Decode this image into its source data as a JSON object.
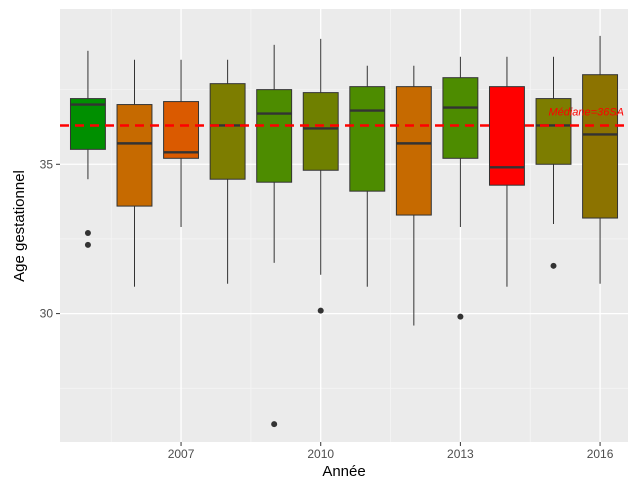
{
  "chart_data": {
    "type": "boxplot",
    "title": "",
    "xlabel": "Année",
    "ylabel": "Age gestationnel",
    "xlim": [
      2004.4,
      2016.6
    ],
    "ylim": [
      25.7,
      40.2
    ],
    "x_ticks": [
      2007,
      2010,
      2013,
      2016
    ],
    "y_ticks": [
      30,
      35
    ],
    "grid": true,
    "legend": "none",
    "reference_line": {
      "value": 36.3,
      "label": "Médiane=36SA",
      "color": "#ff0000",
      "style": "dashed"
    },
    "boxes": [
      {
        "year": 2005,
        "whisker_low": 34.5,
        "q1": 35.5,
        "median": 37.0,
        "q3": 37.2,
        "whisker_high": 38.8,
        "outliers": [
          32.7,
          32.3
        ],
        "color": "#008f00"
      },
      {
        "year": 2006,
        "whisker_low": 30.9,
        "q1": 33.6,
        "median": 35.7,
        "q3": 37.0,
        "whisker_high": 38.5,
        "outliers": [],
        "color": "#c66a00"
      },
      {
        "year": 2007,
        "whisker_low": 32.9,
        "q1": 35.2,
        "median": 35.4,
        "q3": 37.1,
        "whisker_high": 38.5,
        "outliers": [],
        "color": "#da5a00"
      },
      {
        "year": 2008,
        "whisker_low": 31.0,
        "q1": 34.5,
        "median": 36.3,
        "q3": 37.7,
        "whisker_high": 38.5,
        "outliers": [],
        "color": "#7d7d00"
      },
      {
        "year": 2009,
        "whisker_low": 31.7,
        "q1": 34.4,
        "median": 36.7,
        "q3": 37.5,
        "whisker_high": 39.0,
        "outliers": [
          26.3
        ],
        "color": "#4d8c00"
      },
      {
        "year": 2010,
        "whisker_low": 31.3,
        "q1": 34.8,
        "median": 36.2,
        "q3": 37.4,
        "whisker_high": 39.2,
        "outliers": [
          30.1
        ],
        "color": "#6f8000"
      },
      {
        "year": 2011,
        "whisker_low": 30.9,
        "q1": 34.1,
        "median": 36.8,
        "q3": 37.6,
        "whisker_high": 38.3,
        "outliers": [],
        "color": "#4d8c00"
      },
      {
        "year": 2012,
        "whisker_low": 29.6,
        "q1": 33.3,
        "median": 35.7,
        "q3": 37.6,
        "whisker_high": 38.3,
        "outliers": [],
        "color": "#c66a00"
      },
      {
        "year": 2013,
        "whisker_low": 32.9,
        "q1": 35.2,
        "median": 36.9,
        "q3": 37.9,
        "whisker_high": 38.6,
        "outliers": [
          29.9
        ],
        "color": "#4d8c00"
      },
      {
        "year": 2014,
        "whisker_low": 30.9,
        "q1": 34.3,
        "median": 34.9,
        "q3": 37.6,
        "whisker_high": 38.6,
        "outliers": [],
        "color": "#ff0000"
      },
      {
        "year": 2015,
        "whisker_low": 33.0,
        "q1": 35.0,
        "median": 36.3,
        "q3": 37.2,
        "whisker_high": 38.6,
        "outliers": [
          31.6
        ],
        "color": "#7d7d00"
      },
      {
        "year": 2016,
        "whisker_low": 31.0,
        "q1": 33.2,
        "median": 36.0,
        "q3": 38.0,
        "whisker_high": 39.3,
        "outliers": [],
        "color": "#8c7300"
      }
    ]
  }
}
